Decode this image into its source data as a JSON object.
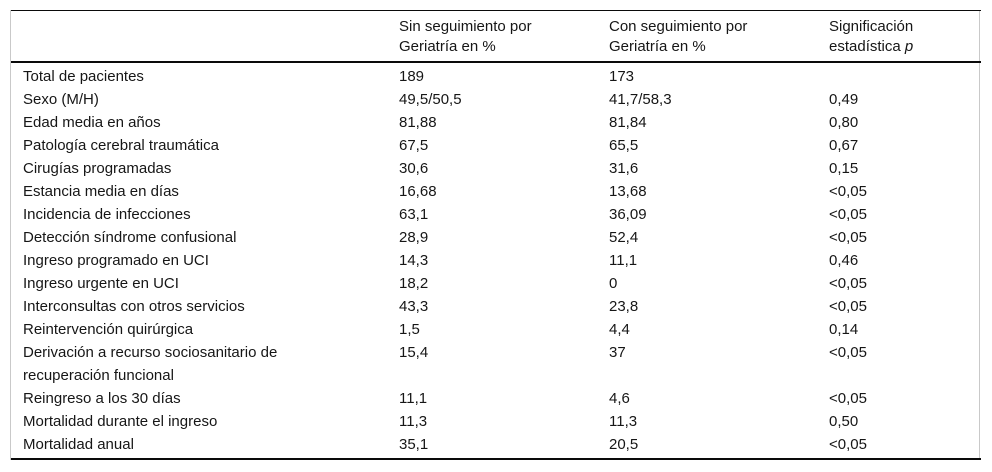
{
  "header": {
    "col1": "",
    "col2_line1": "Sin seguimiento por",
    "col2_line2": "Geriatría en %",
    "col3_line1": "Con seguimiento por",
    "col3_line2": "Geriatría en %",
    "col4_line1": "Significación",
    "col4_line2": "estadística",
    "col4_italic": "p"
  },
  "rows": [
    {
      "label": "Total de pacientes",
      "sin": "189",
      "con": "173",
      "p": ""
    },
    {
      "label": "Sexo (M/H)",
      "sin": "49,5/50,5",
      "con": "41,7/58,3",
      "p": "0,49"
    },
    {
      "label": "Edad media en años",
      "sin": "81,88",
      "con": "81,84",
      "p": "0,80"
    },
    {
      "label": "Patología cerebral traumática",
      "sin": "67,5",
      "con": "65,5",
      "p": "0,67"
    },
    {
      "label": "Cirugías programadas",
      "sin": "30,6",
      "con": "31,6",
      "p": "0,15"
    },
    {
      "label": "Estancia media en días",
      "sin": "16,68",
      "con": "13,68",
      "p": "<0,05"
    },
    {
      "label": "Incidencia de infecciones",
      "sin": "63,1",
      "con": "36,09",
      "p": "<0,05"
    },
    {
      "label": "Detección síndrome confusional",
      "sin": "28,9",
      "con": "52,4",
      "p": "<0,05"
    },
    {
      "label": "Ingreso programado en UCI",
      "sin": "14,3",
      "con": "11,1",
      "p": "0,46"
    },
    {
      "label": "Ingreso urgente en UCI",
      "sin": "18,2",
      "con": "0",
      "p": "<0,05"
    },
    {
      "label": "Interconsultas con otros servicios",
      "sin": "43,3",
      "con": "23,8",
      "p": "<0,05"
    },
    {
      "label": "Reintervención quirúrgica",
      "sin": "1,5",
      "con": "4,4",
      "p": "0,14"
    },
    {
      "label": "Derivación a recurso sociosanitario de\nrecuperación funcional",
      "sin": "15,4",
      "con": "37",
      "p": "<0,05"
    },
    {
      "label": "Reingreso a los 30 días",
      "sin": "11,1",
      "con": "4,6",
      "p": "<0,05"
    },
    {
      "label": "Mortalidad durante el ingreso",
      "sin": "11,3",
      "con": "11,3",
      "p": "0,50"
    },
    {
      "label": "Mortalidad anual",
      "sin": "35,1",
      "con": "20,5",
      "p": "<0,05"
    }
  ],
  "colors": {
    "rule": "#0a0a0a",
    "side_border": "#c9c9c9",
    "text": "#161616",
    "background": "#ffffff"
  }
}
